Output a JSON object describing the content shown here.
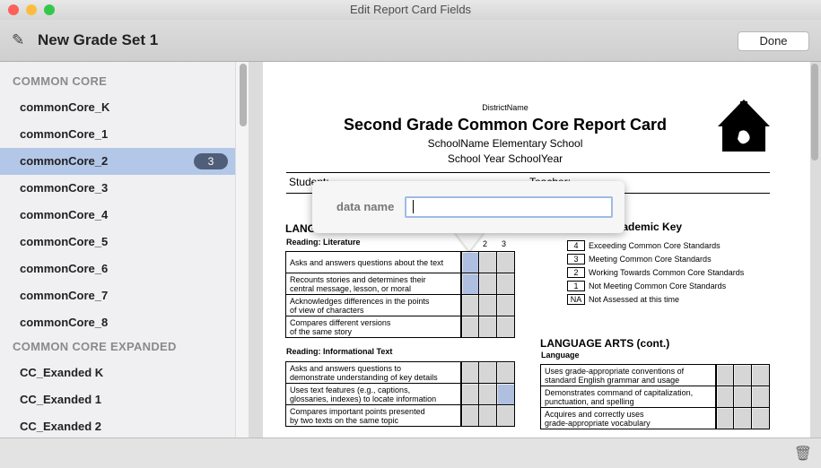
{
  "window": {
    "title": "Edit Report Card Fields"
  },
  "toolbar": {
    "title": "New Grade Set 1",
    "done_label": "Done"
  },
  "sidebar": {
    "sections": [
      {
        "title": "COMMON CORE",
        "items": [
          {
            "label": "commonCore_K"
          },
          {
            "label": "commonCore_1"
          },
          {
            "label": "commonCore_2",
            "badge": "3",
            "selected": true
          },
          {
            "label": "commonCore_3"
          },
          {
            "label": "commonCore_4"
          },
          {
            "label": "commonCore_5"
          },
          {
            "label": "commonCore_6"
          },
          {
            "label": "commonCore_7"
          },
          {
            "label": "commonCore_8"
          }
        ]
      },
      {
        "title": "COMMON CORE EXPANDED",
        "items": [
          {
            "label": "CC_Exanded K"
          },
          {
            "label": "CC_Exanded 1"
          },
          {
            "label": "CC_Exanded 2"
          }
        ]
      }
    ]
  },
  "report": {
    "district": "DistrictName",
    "title": "Second Grade Common Core Report Card",
    "school": "SchoolName Elementary School",
    "year": "School Year SchoolYear",
    "student_label": "Student:",
    "teacher_label": "Teacher:",
    "lang_arts": "LANGUAGE ARTS",
    "reading_lit": "Reading: Literature",
    "col2": "2",
    "col3": "3",
    "lit_rows": [
      {
        "l1": "Asks and answers questions about the text",
        "l2": ""
      },
      {
        "l1": "Recounts stories and determines their",
        "l2": "central message, lesson, or moral"
      },
      {
        "l1": "Acknowledges differences in the points",
        "l2": "of view of characters"
      },
      {
        "l1": "Compares different versions",
        "l2": "of the same story"
      }
    ],
    "reading_info": "Reading: Informational Text",
    "info_rows": [
      {
        "l1": "Asks and answers questions to",
        "l2": "demonstrate understanding of key details"
      },
      {
        "l1": "Uses text features (e.g., captions,",
        "l2": "glossaries, indexes) to locate information"
      },
      {
        "l1": "Compares important points presented",
        "l2": "by two texts on the same topic"
      }
    ],
    "key_title": "Academic Key",
    "key": [
      {
        "code": "4",
        "text": "Exceeding Common Core Standards"
      },
      {
        "code": "3",
        "text": "Meeting Common Core Standards"
      },
      {
        "code": "2",
        "text": "Working Towards Common Core Standards"
      },
      {
        "code": "1",
        "text": "Not Meeting Common Core Standards"
      },
      {
        "code": "NA",
        "text": "Not Assessed at this time"
      }
    ],
    "lang_cont": "LANGUAGE ARTS (cont.)",
    "language": "Language",
    "lang_rows": [
      {
        "l1": "Uses grade-appropriate conventions of",
        "l2": "standard English grammar and usage"
      },
      {
        "l1": "Demonstrates command of capitalization,",
        "l2": "punctuation, and spelling"
      },
      {
        "l1": "Acquires and correctly uses",
        "l2": "grade-appropriate vocabulary"
      }
    ],
    "highlighted_cells": {
      "lit": [
        [
          0,
          0
        ],
        [
          1,
          0
        ]
      ],
      "info": [
        [
          1,
          2
        ]
      ]
    }
  },
  "popover": {
    "label": "data name",
    "value": "",
    "placeholder": ""
  },
  "icons": {
    "edit": "pencil-icon",
    "logo": "schoolhouse-icon",
    "delete": "trash-icon"
  },
  "colors": {
    "selection": "#b3c7e8",
    "badge": "#4f5f7a",
    "highlight_cell": "#aebfe0"
  }
}
